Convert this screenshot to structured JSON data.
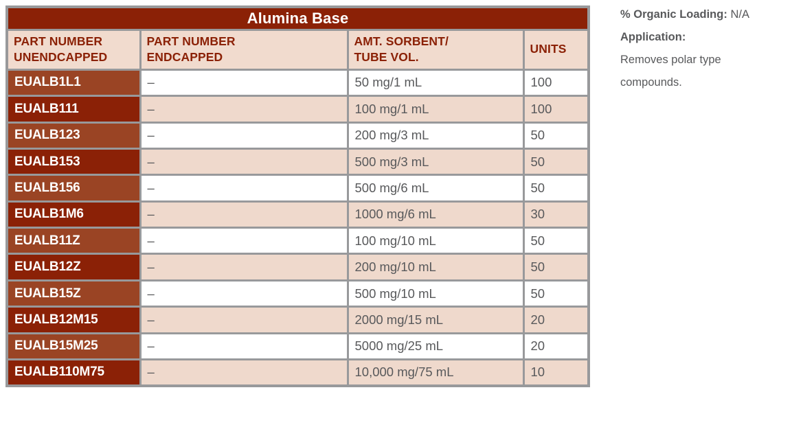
{
  "table": {
    "title": "Alumina Base",
    "columns": [
      "PART NUMBER\nUNENDCAPPED",
      "PART NUMBER\nENDCAPPED",
      "AMT. SORBENT/\nTUBE VOL.",
      "UNITS"
    ],
    "rows": [
      {
        "part_number_unendcapped": "EUALB1L1",
        "part_number_endcapped": "–",
        "amt_sorbent_tube_vol": "50 mg/1 mL",
        "units": "100"
      },
      {
        "part_number_unendcapped": "EUALB111",
        "part_number_endcapped": "–",
        "amt_sorbent_tube_vol": "100 mg/1 mL",
        "units": "100"
      },
      {
        "part_number_unendcapped": "EUALB123",
        "part_number_endcapped": "–",
        "amt_sorbent_tube_vol": "200 mg/3 mL",
        "units": "50"
      },
      {
        "part_number_unendcapped": "EUALB153",
        "part_number_endcapped": "–",
        "amt_sorbent_tube_vol": "500 mg/3 mL",
        "units": "50"
      },
      {
        "part_number_unendcapped": "EUALB156",
        "part_number_endcapped": "–",
        "amt_sorbent_tube_vol": "500 mg/6 mL",
        "units": "50"
      },
      {
        "part_number_unendcapped": "EUALB1M6",
        "part_number_endcapped": "–",
        "amt_sorbent_tube_vol": "1000 mg/6 mL",
        "units": "30"
      },
      {
        "part_number_unendcapped": "EUALB11Z",
        "part_number_endcapped": "–",
        "amt_sorbent_tube_vol": "100 mg/10 mL",
        "units": "50"
      },
      {
        "part_number_unendcapped": "EUALB12Z",
        "part_number_endcapped": "–",
        "amt_sorbent_tube_vol": "200 mg/10 mL",
        "units": "50"
      },
      {
        "part_number_unendcapped": "EUALB15Z",
        "part_number_endcapped": "–",
        "amt_sorbent_tube_vol": "500 mg/10 mL",
        "units": "50"
      },
      {
        "part_number_unendcapped": "EUALB12M15",
        "part_number_endcapped": "–",
        "amt_sorbent_tube_vol": "2000 mg/15 mL",
        "units": "20"
      },
      {
        "part_number_unendcapped": "EUALB15M25",
        "part_number_endcapped": "–",
        "amt_sorbent_tube_vol": "5000 mg/25 mL",
        "units": "20"
      },
      {
        "part_number_unendcapped": "EUALB110M75",
        "part_number_endcapped": "–",
        "amt_sorbent_tube_vol": "10,000 mg/75 mL",
        "units": "10"
      }
    ]
  },
  "info_panel": {
    "organic_loading_label": "% Organic Loading:",
    "organic_loading_value": "N/A",
    "application_label": "Application:",
    "application_text": "Removes polar type compounds."
  },
  "colors": {
    "dark_red": "#8B2106",
    "terracotta": "#9A4424",
    "pink": "#EFD9CC",
    "header_pink": "#F1DBCE",
    "border_gray": "#98999B",
    "text_gray": "#58595B",
    "white": "#FFFFFF"
  }
}
